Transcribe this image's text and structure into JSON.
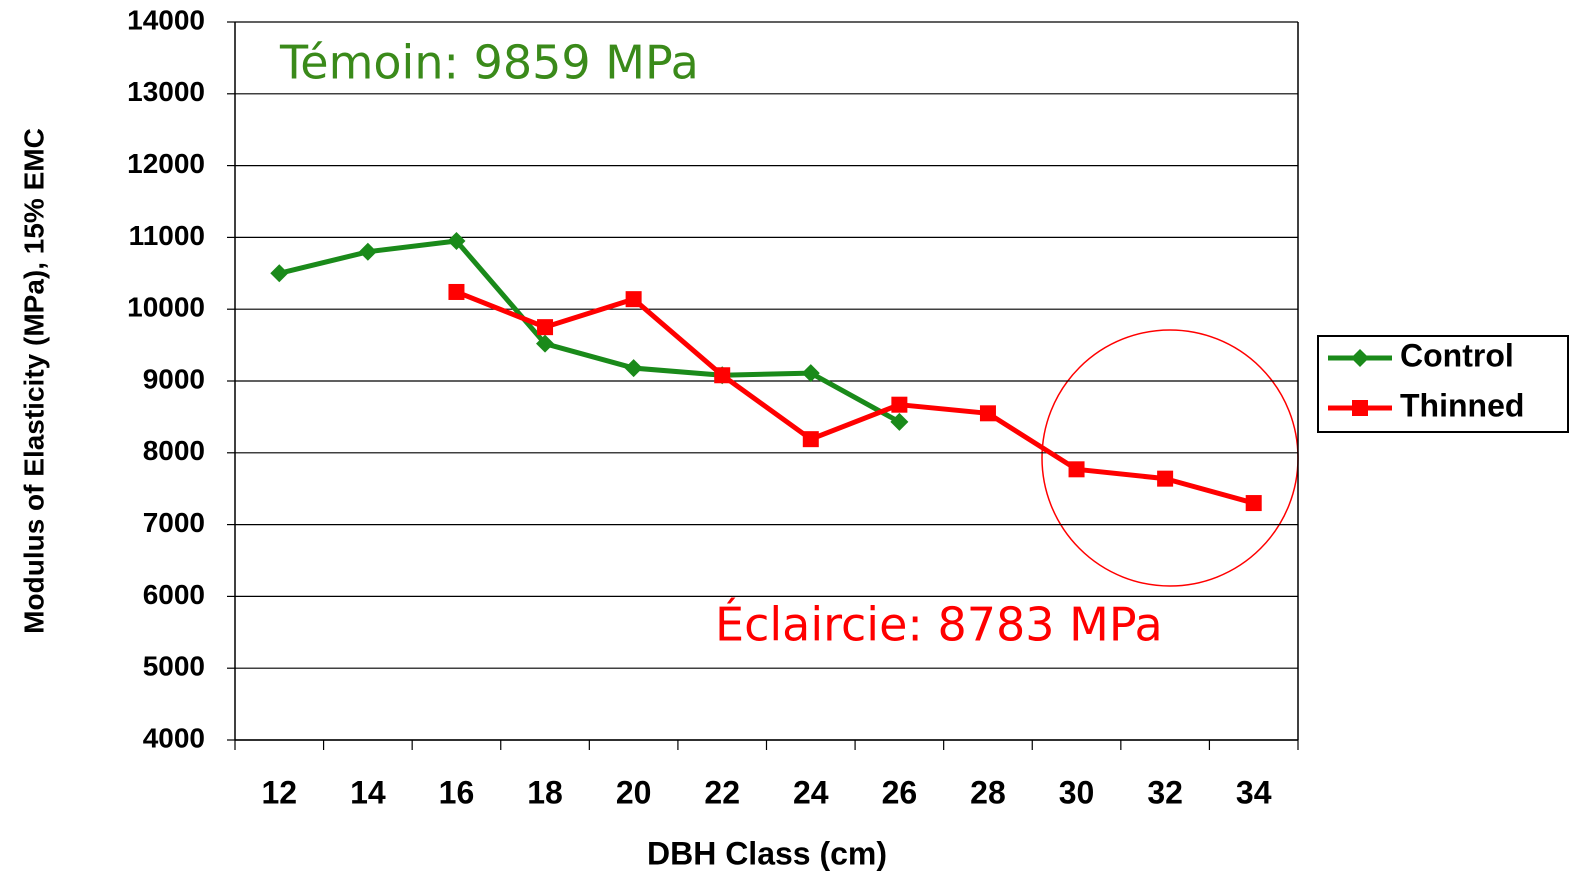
{
  "chart_data": {
    "type": "line",
    "x_label": "DBH Class (cm)",
    "y_label": "Modulus of Elasticity (MPa), 15% EMC",
    "categories": [
      "12",
      "14",
      "16",
      "18",
      "20",
      "22",
      "24",
      "26",
      "28",
      "30",
      "32",
      "34"
    ],
    "series": [
      {
        "name": "Control",
        "color": "#1a8a1a",
        "marker": "diamond",
        "values": [
          10500,
          10800,
          10950,
          9520,
          9180,
          9080,
          9110,
          8430,
          null,
          null,
          null,
          null
        ]
      },
      {
        "name": "Thinned",
        "color": "#ff0000",
        "marker": "square",
        "values": [
          null,
          null,
          10240,
          9750,
          10140,
          9080,
          8190,
          8670,
          8550,
          7770,
          7640,
          7300
        ]
      }
    ],
    "annotations": [
      {
        "text": "Témoin: 9859 MPa",
        "color": "#3a8a1a"
      },
      {
        "text": "Éclaircie: 8783 MPa",
        "color": "#ff0000"
      }
    ],
    "ylim": [
      4000,
      14000
    ],
    "yticks": [
      4000,
      5000,
      6000,
      7000,
      8000,
      9000,
      10000,
      11000,
      12000,
      13000,
      14000
    ],
    "grid": true,
    "legend": "right"
  }
}
